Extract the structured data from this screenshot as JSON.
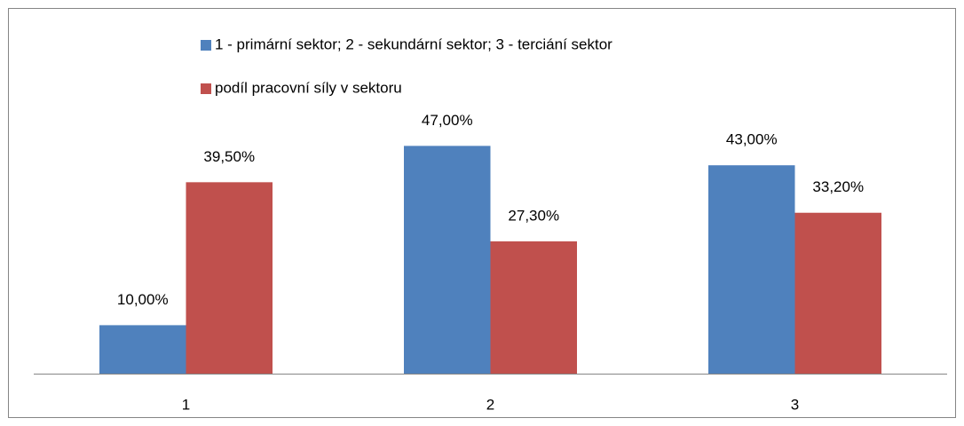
{
  "chart_data": {
    "type": "bar",
    "categories": [
      "1",
      "2",
      "3"
    ],
    "series": [
      {
        "name": "1 - primární sektor; 2 - sekundární sektor; 3 - terciání sektor",
        "color": "#4f81bd",
        "values": [
          10,
          47,
          43
        ],
        "value_labels": [
          "10,00%",
          "47,00%",
          "43,00%"
        ]
      },
      {
        "name": "podíl pracovní síly v sektoru",
        "color": "#c0504d",
        "values": [
          39.5,
          27.3,
          33.2
        ],
        "value_labels": [
          "39,50%",
          "27,30%",
          "33,20%"
        ]
      }
    ],
    "ylim": [
      0,
      50
    ],
    "legend": "top"
  }
}
